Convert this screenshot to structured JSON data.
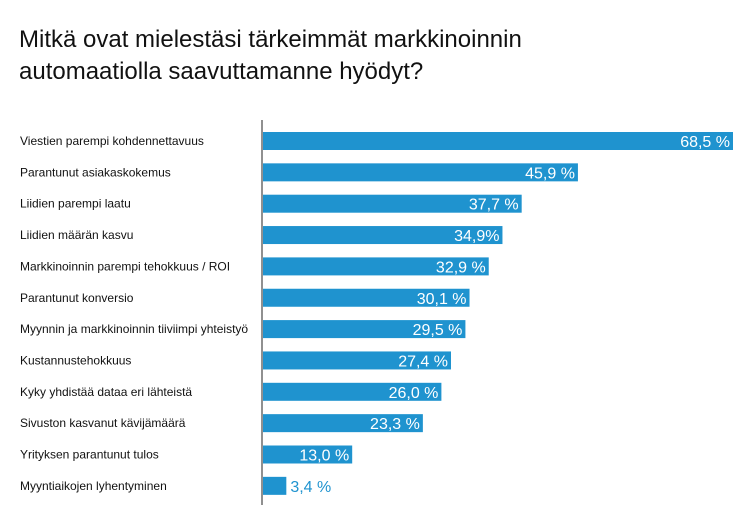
{
  "title_line1": "Mitkä ovat mielestäsi tärkeimmät markkinoinnin",
  "title_line2": "automaatiolla saavuttamanne hyödyt?",
  "colors": {
    "bar": "#1f93cf",
    "label_inside": "#ffffff",
    "label_outside": "#1f93cf",
    "axis": "#222222"
  },
  "chart_data": {
    "type": "bar",
    "orientation": "horizontal",
    "title": "Mitkä ovat mielestäsi tärkeimmät markkinoinnin automaatiolla saavuttamanne hyödyt?",
    "categories": [
      "Viestien parempi kohdennettavuus",
      "Parantunut asiakaskokemus",
      "Liidien parempi laatu",
      "Liidien määrän kasvu",
      "Markkinoinnin parempi tehokkuus / ROI",
      "Parantunut konversio",
      "Myynnin ja markkinoinnin tiiviimpi yhteistyö",
      "Kustannustehokkuus",
      "Kyky yhdistää dataa eri lähteistä",
      "Sivuston kasvanut kävijämäärä",
      "Yrityksen parantunut tulos",
      "Myyntiaikojen lyhentyminen"
    ],
    "values": [
      68.5,
      45.9,
      37.7,
      34.9,
      32.9,
      30.1,
      29.5,
      27.4,
      26.0,
      23.3,
      13.0,
      3.4
    ],
    "value_labels": [
      "68,5 %",
      "45,9 %",
      "37,7 %",
      "34,9%",
      "32,9 %",
      "30,1 %",
      "29,5 %",
      "27,4 %",
      "26,0 %",
      "23,3 %",
      "13,0 %",
      "3,4 %"
    ],
    "xlim": [
      0,
      70
    ],
    "grid": false,
    "legend": "none"
  }
}
